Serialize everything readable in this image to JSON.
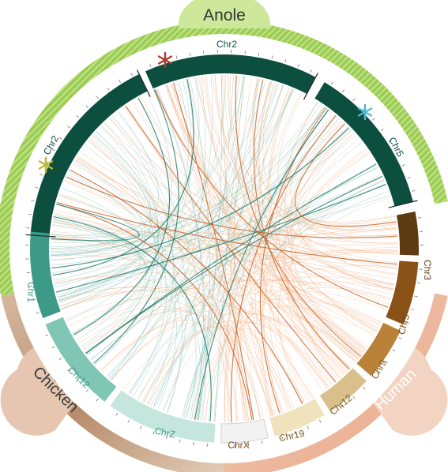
{
  "species": {
    "anole": {
      "label": "Anole",
      "color": "#a8d46a"
    },
    "chicken": {
      "label": "Chicken",
      "color": "#c9a38a"
    },
    "human": {
      "label": "Human",
      "color": "#e8b59c"
    }
  },
  "chromosomes": [
    {
      "id": "anole-chr2",
      "label": "Chr2",
      "species": "anole",
      "color": "#0d4f3f",
      "text_color": "#0d4f3f"
    },
    {
      "id": "anole-chr2b",
      "label": "Chr2",
      "species": "anole",
      "color": "#0d4f3f",
      "text_color": "#0d4f3f"
    },
    {
      "id": "anole-chr5",
      "label": "Chr5",
      "species": "anole",
      "color": "#0d4f3f",
      "text_color": "#0d4f3f"
    },
    {
      "id": "human-chr3",
      "label": "Chr3",
      "species": "human",
      "color": "#5e3b12",
      "text_color": "#5e3b12"
    },
    {
      "id": "human-chr5",
      "label": "Chr5",
      "species": "human",
      "color": "#8a5216",
      "text_color": "#7a4612"
    },
    {
      "id": "human-chr9",
      "label": "Chr9",
      "species": "human",
      "color": "#b98238",
      "text_color": "#8a5a1a"
    },
    {
      "id": "human-chr12",
      "label": "Chr12",
      "species": "human",
      "color": "#d9c08a",
      "text_color": "#7a5a1a"
    },
    {
      "id": "human-chr19",
      "label": "Chr19",
      "species": "human",
      "color": "#efe2bd",
      "text_color": "#7a5a1a"
    },
    {
      "id": "human-chrx",
      "label": "ChrX",
      "species": "human",
      "color": "#f2f2f2",
      "text_color": "#7a4612"
    },
    {
      "id": "chicken-chrz",
      "label": "ChrZ",
      "species": "chicken",
      "color": "#c4e6dd",
      "text_color": "#3e9a88"
    },
    {
      "id": "chicken-chr12",
      "label": "Chr12",
      "species": "chicken",
      "color": "#7fc6b4",
      "text_color": "#3e9a88"
    },
    {
      "id": "chicken-chr1",
      "label": "Chr1",
      "species": "chicken",
      "color": "#3e9a88",
      "text_color": "#3e9a88"
    }
  ],
  "markers": [
    {
      "name": "red-asterisk",
      "color": "#b03a2e"
    },
    {
      "name": "blue-asterisk",
      "color": "#4fb8d8"
    },
    {
      "name": "olive-asterisk",
      "color": "#b8b832"
    }
  ],
  "link_colors": {
    "orange": "#f0a06a",
    "teal": "#4aa89a",
    "dark_orange": "#c8642a",
    "dark_teal": "#1e7a6a"
  }
}
